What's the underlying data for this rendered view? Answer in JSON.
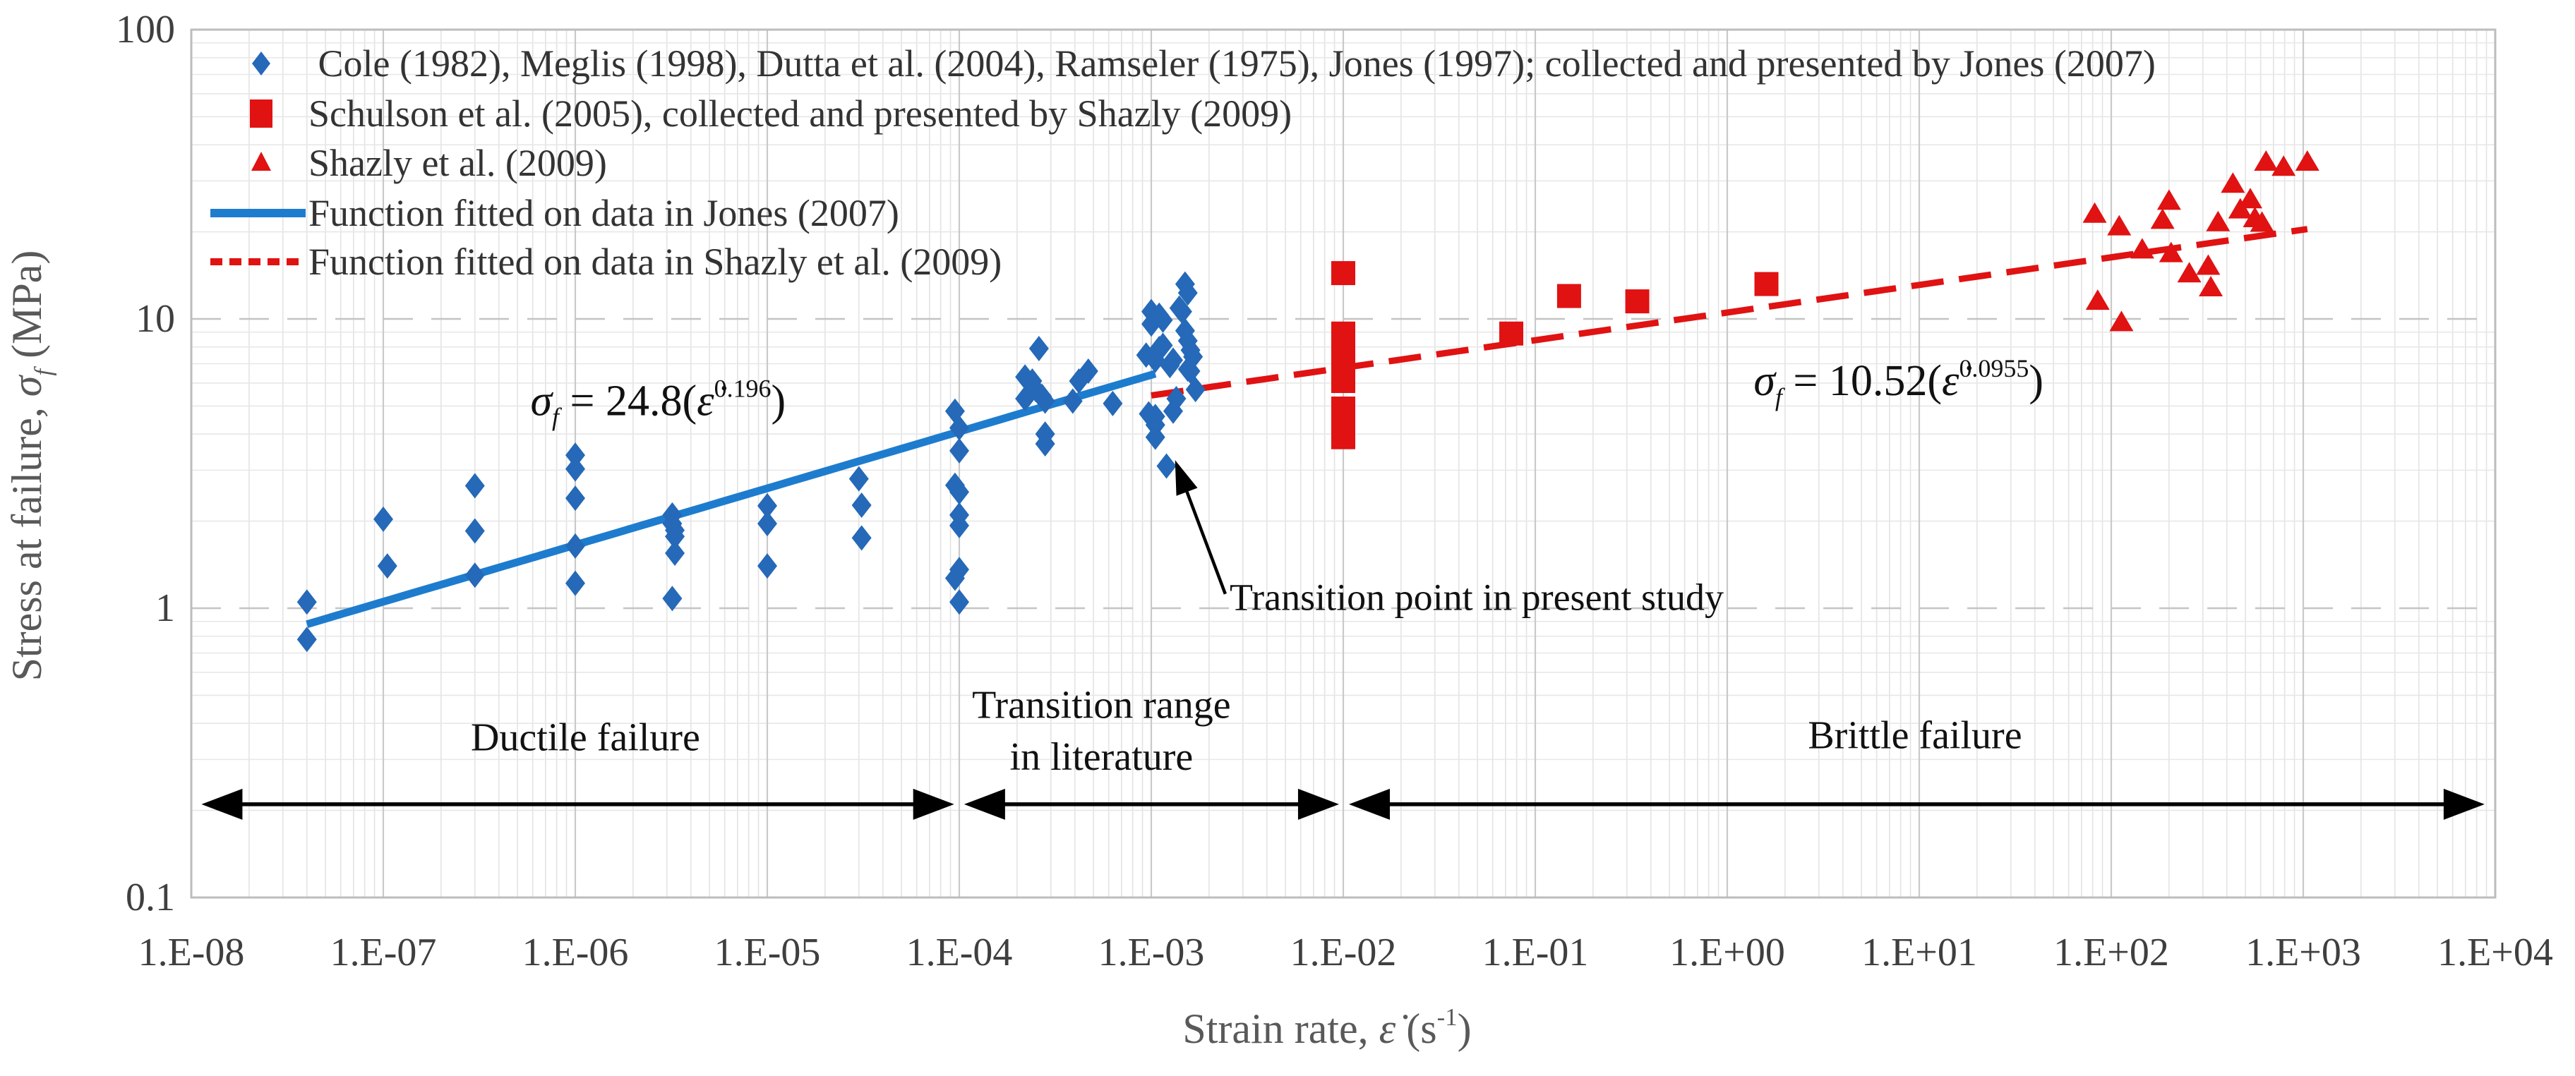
{
  "chart_data": {
    "type": "scatter",
    "x_axis": {
      "label_segments": [
        {
          "t": "Strain rate, ",
          "i": false
        },
        {
          "t": "ε̇",
          "i": true
        },
        {
          "t": "  (s",
          "i": false
        },
        {
          "t": "-1",
          "p": "sup",
          "i": false
        },
        {
          "t": ")",
          "i": false
        }
      ],
      "scale": "log",
      "min": 1e-08,
      "max": 10000.0,
      "tick_labels": [
        "1.E-08",
        "1.E-07",
        "1.E-06",
        "1.E-05",
        "1.E-04",
        "1.E-03",
        "1.E-02",
        "1.E-01",
        "1.E+00",
        "1.E+01",
        "1.E+02",
        "1.E+03",
        "1.E+04"
      ]
    },
    "y_axis": {
      "label_segments": [
        {
          "t": "Stress at failure, ",
          "i": false
        },
        {
          "t": "σ",
          "i": true
        },
        {
          "t": "f",
          "p": "sub",
          "i": true
        },
        {
          "t": "  (MPa)",
          "i": false
        }
      ],
      "scale": "log",
      "min": 0.1,
      "max": 100,
      "tick_labels": [
        "100",
        "10",
        "1",
        "0.1"
      ],
      "tick_values": [
        100,
        10,
        1,
        0.1
      ]
    },
    "grid": {
      "minor": true,
      "major": true
    },
    "colors": {
      "blue_marker": "#2569B8",
      "blue_line": "#1E7CCE",
      "red": "#E01212"
    },
    "series": [
      {
        "name": "jones-collection",
        "marker": "diamond",
        "color": "#2569B8",
        "points": [
          [
            4e-08,
            1.05
          ],
          [
            4e-08,
            0.78
          ],
          [
            1e-07,
            2.03
          ],
          [
            1.05e-07,
            1.4
          ],
          [
            3e-07,
            2.65
          ],
          [
            3e-07,
            1.85
          ],
          [
            3e-07,
            1.3
          ],
          [
            1e-06,
            3.38
          ],
          [
            1e-06,
            3.03
          ],
          [
            1e-06,
            2.4
          ],
          [
            1e-06,
            1.64
          ],
          [
            1e-06,
            1.22
          ],
          [
            3.2e-06,
            2.1
          ],
          [
            3.2e-06,
            1.96
          ],
          [
            3.3e-06,
            1.86
          ],
          [
            3.3e-06,
            1.77
          ],
          [
            3.3e-06,
            1.55
          ],
          [
            3.2e-06,
            1.08
          ],
          [
            1e-05,
            2.26
          ],
          [
            1e-05,
            1.96
          ],
          [
            1e-05,
            1.4
          ],
          [
            3e-05,
            2.8
          ],
          [
            3.1e-05,
            2.27
          ],
          [
            3.1e-05,
            1.75
          ],
          [
            9.5e-05,
            4.8
          ],
          [
            0.0001,
            4.2
          ],
          [
            0.0001,
            3.5
          ],
          [
            9.5e-05,
            2.66
          ],
          [
            0.0001,
            2.52
          ],
          [
            0.0001,
            2.1
          ],
          [
            0.0001,
            1.93
          ],
          [
            0.0001,
            1.36
          ],
          [
            9.5e-05,
            1.27
          ],
          [
            0.0001,
            1.05
          ],
          [
            0.00022,
            6.3
          ],
          [
            0.00022,
            5.3
          ],
          [
            0.00023,
            5.5
          ],
          [
            0.00024,
            6.1
          ],
          [
            0.00025,
            5.7
          ],
          [
            0.00026,
            7.9
          ],
          [
            0.00027,
            5.4
          ],
          [
            0.00028,
            5.2
          ],
          [
            0.00028,
            4.0
          ],
          [
            0.00028,
            3.7
          ],
          [
            0.00039,
            5.2
          ],
          [
            0.00042,
            6.1
          ],
          [
            0.00047,
            6.6
          ],
          [
            0.00063,
            5.1
          ],
          [
            0.00094,
            7.5
          ],
          [
            0.00097,
            4.7
          ],
          [
            0.001,
            10.6
          ],
          [
            0.001,
            9.6
          ],
          [
            0.00105,
            7.2
          ],
          [
            0.00105,
            4.6
          ],
          [
            0.00105,
            4.3
          ],
          [
            0.00105,
            3.9
          ],
          [
            0.0011,
            10.3
          ],
          [
            0.0011,
            7.9
          ],
          [
            0.00115,
            9.9
          ],
          [
            0.00115,
            8.1
          ],
          [
            0.0012,
            3.1
          ],
          [
            0.00125,
            6.9
          ],
          [
            0.0013,
            7.2
          ],
          [
            0.0013,
            4.8
          ],
          [
            0.00135,
            5.3
          ],
          [
            0.0014,
            10.9
          ],
          [
            0.00145,
            10.6
          ],
          [
            0.0015,
            13.2
          ],
          [
            0.0015,
            9.1
          ],
          [
            0.00155,
            12.3
          ],
          [
            0.00155,
            8.4
          ],
          [
            0.00155,
            6.7
          ],
          [
            0.0016,
            7.8
          ],
          [
            0.0016,
            6.6
          ],
          [
            0.00165,
            7.4
          ],
          [
            0.0017,
            5.7
          ]
        ]
      },
      {
        "name": "schulson",
        "marker": "square",
        "color": "#E01212",
        "points": [
          [
            0.01,
            14.4
          ],
          [
            0.01,
            8.9
          ],
          [
            0.01,
            7.5
          ],
          [
            0.01,
            6.8
          ],
          [
            0.01,
            6.1
          ],
          [
            0.01,
            4.9
          ],
          [
            0.01,
            4.3
          ],
          [
            0.01,
            3.9
          ],
          [
            0.075,
            8.9
          ],
          [
            0.15,
            12.0
          ],
          [
            0.34,
            11.5
          ],
          [
            1.6,
            13.2
          ]
        ]
      },
      {
        "name": "shazly",
        "marker": "triangle",
        "color": "#E01212",
        "points": [
          [
            82,
            23.0
          ],
          [
            85,
            11.5
          ],
          [
            110,
            20.8
          ],
          [
            113,
            9.7
          ],
          [
            145,
            17.3
          ],
          [
            185,
            21.9
          ],
          [
            200,
            25.5
          ],
          [
            205,
            16.8
          ],
          [
            255,
            14.3
          ],
          [
            320,
            15.2
          ],
          [
            330,
            12.8
          ],
          [
            360,
            21.5
          ],
          [
            430,
            29.2
          ],
          [
            470,
            23.8
          ],
          [
            530,
            25.8
          ],
          [
            560,
            22.2
          ],
          [
            610,
            21.4
          ],
          [
            640,
            34.8
          ],
          [
            790,
            33.4
          ],
          [
            1050,
            34.8
          ]
        ]
      }
    ],
    "fits": [
      {
        "name": "fit-jones",
        "color": "#1E7CCE",
        "style": "solid",
        "coef": 24.8,
        "exp": 0.196,
        "x1": 4e-08,
        "x2": 0.00105
      },
      {
        "name": "fit-shazly",
        "color": "#E01212",
        "style": "dashed",
        "coef": 10.52,
        "exp": 0.0955,
        "x1": 0.001,
        "x2": 1050
      }
    ],
    "equations": [
      {
        "name": "equation-jones",
        "x": 2.7e-06,
        "y": 4.65,
        "segments": [
          {
            "t": "σ",
            "i": true
          },
          {
            "t": "f",
            "p": "sub",
            "i": true
          },
          {
            "t": " = 24.8(",
            "i": false
          },
          {
            "t": "ε̇",
            "i": true
          },
          {
            "t": "0.196",
            "p": "sup",
            "i": false
          },
          {
            "t": ")",
            "i": false
          }
        ]
      },
      {
        "name": "equation-shazly",
        "x": 7.8,
        "y": 5.45,
        "segments": [
          {
            "t": "σ",
            "i": true
          },
          {
            "t": "f",
            "p": "sub",
            "i": true
          },
          {
            "t": " = 10.52(",
            "i": false
          },
          {
            "t": "ε̇",
            "i": true
          },
          {
            "t": "0.0955",
            "p": "sup",
            "i": false
          },
          {
            "t": ")",
            "i": false
          }
        ]
      }
    ],
    "transition_annotation": {
      "text": "Transition point in present study",
      "text_x": 0.00256,
      "text_y": 0.985,
      "arrow": {
        "x1": 0.00243,
        "y1": 1.12,
        "x2": 0.00133,
        "y2": 3.25
      }
    },
    "region_labels": [
      {
        "name": "ductile-label",
        "lines": [
          "Ductile failure"
        ],
        "x": 1.13e-06,
        "y": [
          0.357
        ]
      },
      {
        "name": "transition-label",
        "lines": [
          "Transition range",
          "in literature"
        ],
        "x": 0.00055,
        "y": [
          0.462,
          0.306
        ]
      },
      {
        "name": "brittle-label",
        "lines": [
          "Brittle failure"
        ],
        "x": 9.5,
        "y": [
          0.363
        ]
      }
    ],
    "range_arrows": [
      {
        "name": "ductile-range-arrow",
        "x1": 1.13e-08,
        "x2": 9.4e-05,
        "y": 0.21
      },
      {
        "name": "transition-range-arrow",
        "x1": 0.000106,
        "x2": 0.0095,
        "y": 0.21
      },
      {
        "name": "brittle-range-arrow",
        "x1": 0.0107,
        "x2": 8800,
        "y": 0.21
      }
    ],
    "legend": {
      "items": [
        {
          "marker": "diamond",
          "color": "#2569B8",
          "label": " Cole (1982), Meglis (1998), Dutta et al. (2004), Ramseler (1975), Jones (1997); collected and presented by Jones (2007)"
        },
        {
          "marker": "square",
          "color": "#E01212",
          "label": "Schulson et al. (2005), collected and presented by Shazly (2009)"
        },
        {
          "marker": "triangle",
          "color": "#E01212",
          "label": "Shazly et al. (2009)"
        },
        {
          "marker": "line-solid",
          "color": "#1E7CCE",
          "label": "Function fitted on data in Jones (2007)"
        },
        {
          "marker": "line-dashed",
          "color": "#E01212",
          "label": "Function fitted on data in Shazly et al. (2009)"
        }
      ]
    }
  }
}
